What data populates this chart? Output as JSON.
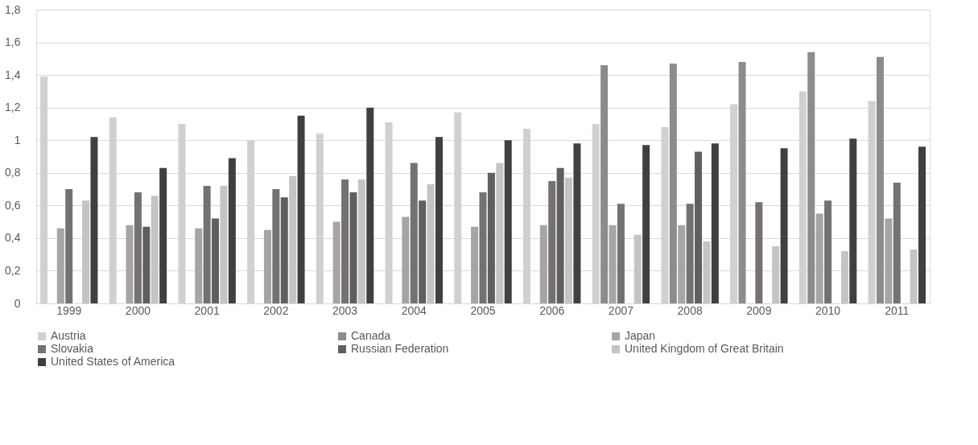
{
  "chart_data": {
    "type": "bar",
    "categories": [
      "1999",
      "2000",
      "2001",
      "2002",
      "2003",
      "2004",
      "2005",
      "2006",
      "2007",
      "2008",
      "2009",
      "2010",
      "2011"
    ],
    "series": [
      {
        "name": "Austria",
        "color": "#d0d0d0",
        "values": [
          1.39,
          1.14,
          1.1,
          1.0,
          1.04,
          1.11,
          1.17,
          1.07,
          1.1,
          1.08,
          1.22,
          1.3,
          1.24
        ]
      },
      {
        "name": "Canada",
        "color": "#8c8c8c",
        "values": [
          null,
          null,
          null,
          null,
          null,
          null,
          null,
          null,
          1.46,
          1.47,
          1.48,
          1.54,
          1.51
        ]
      },
      {
        "name": "Japan",
        "color": "#a5a5a5",
        "values": [
          0.46,
          0.48,
          0.46,
          0.45,
          0.5,
          0.53,
          0.47,
          0.48,
          0.48,
          0.48,
          null,
          0.55,
          0.52
        ]
      },
      {
        "name": "Slovakia",
        "color": "#767171",
        "values": [
          0.7,
          0.68,
          0.72,
          0.7,
          0.76,
          0.86,
          0.68,
          0.75,
          0.61,
          0.61,
          0.62,
          0.63,
          0.74
        ]
      },
      {
        "name": "Russian Federation",
        "color": "#5f5f5f",
        "values": [
          null,
          0.47,
          0.52,
          0.65,
          0.68,
          0.63,
          0.8,
          0.83,
          null,
          0.93,
          null,
          null,
          null
        ]
      },
      {
        "name": "United Kingdom of Great Britain",
        "color": "#c4c4c4",
        "values": [
          0.63,
          0.66,
          0.72,
          0.78,
          0.76,
          0.73,
          0.86,
          0.77,
          0.42,
          0.38,
          0.35,
          0.32,
          0.33
        ]
      },
      {
        "name": "United States of America",
        "color": "#404040",
        "values": [
          1.02,
          0.83,
          0.89,
          1.15,
          1.2,
          1.02,
          1.0,
          0.98,
          0.97,
          0.98,
          0.95,
          1.01,
          0.96
        ]
      }
    ],
    "ylim": [
      0,
      1.8
    ],
    "yticks": [
      0,
      {
        "value": 0.2,
        "label": "0,2"
      },
      {
        "value": 0.4,
        "label": "0,4"
      },
      {
        "value": 0.6,
        "label": "0,6"
      },
      {
        "value": 0.8,
        "label": "0,8"
      },
      1,
      {
        "value": 1.2,
        "label": "1,2"
      },
      {
        "value": 1.4,
        "label": "1,4"
      },
      {
        "value": 1.6,
        "label": "1,6"
      },
      {
        "value": 1.8,
        "label": "1,8"
      }
    ],
    "grid": "y",
    "legend": "bottom"
  }
}
